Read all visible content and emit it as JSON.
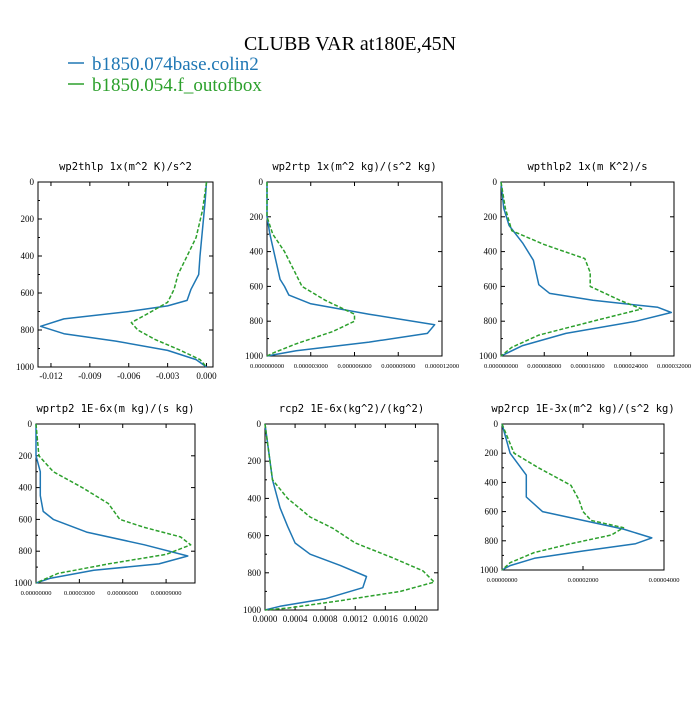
{
  "page": {
    "title": "CLUBB VAR at180E,45N",
    "legend": [
      {
        "label": "b1850.074base.colin2",
        "color": "#1f77b4"
      },
      {
        "label": "b1850.054.f_outofbox",
        "color": "#2ca02c"
      }
    ]
  },
  "chart_data": [
    {
      "type": "line",
      "title": "wp2thlp  1x(m^2 K)/s^2",
      "xlim": [
        -0.013,
        0.0005
      ],
      "ylim": [
        1000,
        0
      ],
      "xticks": [
        "-0.012",
        "-0.009",
        "-0.006",
        "-0.003",
        "0.000"
      ],
      "xtick_values": [
        -0.012,
        -0.009,
        -0.006,
        -0.003,
        0.0
      ],
      "yticks": [
        "0",
        "200",
        "400",
        "600",
        "800",
        "1000"
      ],
      "ytick_values": [
        0,
        200,
        400,
        600,
        800,
        1000
      ],
      "series": [
        {
          "color": "#1f77b4",
          "dashed": false,
          "points": [
            [
              0,
              0
            ],
            [
              -0.0001,
              100
            ],
            [
              -0.0003,
              250
            ],
            [
              -0.0005,
              400
            ],
            [
              -0.0006,
              500
            ],
            [
              -0.0012,
              580
            ],
            [
              -0.0015,
              640
            ],
            [
              -0.003,
              670
            ],
            [
              -0.006,
              700
            ],
            [
              -0.011,
              740
            ],
            [
              -0.0128,
              780
            ],
            [
              -0.011,
              820
            ],
            [
              -0.007,
              860
            ],
            [
              -0.003,
              910
            ],
            [
              -0.0008,
              960
            ],
            [
              0,
              1000
            ]
          ]
        },
        {
          "color": "#2ca02c",
          "dashed": true,
          "points": [
            [
              0,
              0
            ],
            [
              -0.0003,
              150
            ],
            [
              -0.0008,
              300
            ],
            [
              -0.0015,
              400
            ],
            [
              -0.0022,
              500
            ],
            [
              -0.0025,
              580
            ],
            [
              -0.003,
              650
            ],
            [
              -0.0045,
              710
            ],
            [
              -0.0058,
              760
            ],
            [
              -0.0053,
              800
            ],
            [
              -0.004,
              850
            ],
            [
              -0.002,
              910
            ],
            [
              -0.0005,
              960
            ],
            [
              0,
              1000
            ]
          ]
        }
      ]
    },
    {
      "type": "line",
      "title": "wp2rtp  1x(m^2 kg)/(s^2 kg)",
      "xlim": [
        0,
        1.2e-05
      ],
      "ylim": [
        1000,
        0
      ],
      "xticks": [
        "0.000000000",
        "0.000003000",
        "0.000006000",
        "0.000009000",
        "0.000012000"
      ],
      "xtick_values": [
        0,
        3e-06,
        6e-06,
        9e-06,
        1.2e-05
      ],
      "yticks": [
        "0",
        "200",
        "400",
        "600",
        "800",
        "1000"
      ],
      "ytick_values": [
        0,
        200,
        400,
        600,
        800,
        1000
      ],
      "series": [
        {
          "color": "#1f77b4",
          "dashed": false,
          "points": [
            [
              0,
              0
            ],
            [
              0,
              200
            ],
            [
              2e-07,
              300
            ],
            [
              6e-07,
              450
            ],
            [
              9e-07,
              560
            ],
            [
              1.2e-06,
              600
            ],
            [
              1.5e-06,
              650
            ],
            [
              3e-06,
              700
            ],
            [
              7e-06,
              760
            ],
            [
              1.15e-05,
              820
            ],
            [
              1.1e-05,
              870
            ],
            [
              7e-06,
              920
            ],
            [
              2e-06,
              970
            ],
            [
              0,
              1000
            ]
          ]
        },
        {
          "color": "#2ca02c",
          "dashed": true,
          "points": [
            [
              0,
              0
            ],
            [
              0,
              200
            ],
            [
              4e-07,
              300
            ],
            [
              1.2e-06,
              400
            ],
            [
              1.8e-06,
              500
            ],
            [
              2.4e-06,
              600
            ],
            [
              4e-06,
              680
            ],
            [
              6e-06,
              760
            ],
            [
              6e-06,
              800
            ],
            [
              4.5e-06,
              860
            ],
            [
              2e-06,
              930
            ],
            [
              5e-07,
              980
            ],
            [
              0,
              1000
            ]
          ]
        }
      ]
    },
    {
      "type": "line",
      "title": "wpthlp2  1x(m K^2)/s",
      "xlim": [
        0,
        3.2e-05
      ],
      "ylim": [
        1000,
        0
      ],
      "xticks": [
        "0.000000000",
        "0.000008000",
        "0.000016000",
        "0.000024000",
        "0.000032000"
      ],
      "xtick_values": [
        0,
        8e-06,
        1.6e-05,
        2.4e-05,
        3.2e-05
      ],
      "yticks": [
        "0",
        "200",
        "400",
        "600",
        "800",
        "1000"
      ],
      "ytick_values": [
        0,
        200,
        400,
        600,
        800,
        1000
      ],
      "series": [
        {
          "color": "#1f77b4",
          "dashed": false,
          "points": [
            [
              0,
              0
            ],
            [
              5e-07,
              150
            ],
            [
              1.5e-06,
              250
            ],
            [
              4e-06,
              350
            ],
            [
              6e-06,
              450
            ],
            [
              6.5e-06,
              520
            ],
            [
              7e-06,
              590
            ],
            [
              9e-06,
              640
            ],
            [
              1.7e-05,
              680
            ],
            [
              2.9e-05,
              720
            ],
            [
              3.15e-05,
              750
            ],
            [
              2.5e-05,
              800
            ],
            [
              1.2e-05,
              870
            ],
            [
              4e-06,
              940
            ],
            [
              0,
              1000
            ]
          ]
        },
        {
          "color": "#2ca02c",
          "dashed": true,
          "points": [
            [
              0,
              0
            ],
            [
              8e-07,
              150
            ],
            [
              2e-06,
              280
            ],
            [
              8e-06,
              360
            ],
            [
              1.55e-05,
              440
            ],
            [
              1.65e-05,
              520
            ],
            [
              1.65e-05,
              600
            ],
            [
              2.2e-05,
              680
            ],
            [
              2.6e-05,
              730
            ],
            [
              1.7e-05,
              800
            ],
            [
              7e-06,
              880
            ],
            [
              2e-06,
              950
            ],
            [
              0,
              1000
            ]
          ]
        }
      ]
    },
    {
      "type": "line",
      "title": "wprtp2  1E-6x(m kg)/(s kg)",
      "xlim": [
        0,
        0.00011
      ],
      "ylim": [
        1000,
        0
      ],
      "xticks": [
        "0.00000000",
        "0.00003000",
        "0.00006000",
        "0.00009000"
      ],
      "xtick_values": [
        0,
        3e-05,
        6e-05,
        9e-05
      ],
      "yticks": [
        "0",
        "200",
        "400",
        "600",
        "800",
        "1000"
      ],
      "ytick_values": [
        0,
        200,
        400,
        600,
        800,
        1000
      ],
      "series": [
        {
          "color": "#1f77b4",
          "dashed": false,
          "points": [
            [
              0,
              0
            ],
            [
              0,
              200
            ],
            [
              3e-06,
              300
            ],
            [
              3e-06,
              450
            ],
            [
              5e-06,
              550
            ],
            [
              1.2e-05,
              600
            ],
            [
              3.5e-05,
              680
            ],
            [
              7.5e-05,
              760
            ],
            [
              0.000105,
              830
            ],
            [
              8.5e-05,
              880
            ],
            [
              4e-05,
              920
            ],
            [
              1e-05,
              970
            ],
            [
              0,
              1000
            ]
          ]
        },
        {
          "color": "#2ca02c",
          "dashed": true,
          "points": [
            [
              0,
              0
            ],
            [
              2e-06,
              200
            ],
            [
              1.2e-05,
              300
            ],
            [
              3.2e-05,
              400
            ],
            [
              5e-05,
              500
            ],
            [
              5.8e-05,
              600
            ],
            [
              7.5e-05,
              650
            ],
            [
              0.0001,
              710
            ],
            [
              0.000107,
              760
            ],
            [
              9e-05,
              820
            ],
            [
              5e-05,
              880
            ],
            [
              1.5e-05,
              940
            ],
            [
              0,
              1000
            ]
          ]
        }
      ]
    },
    {
      "type": "line",
      "title": "rcp2  1E-6x(kg^2)/(kg^2)",
      "xlim": [
        0,
        0.0023
      ],
      "ylim": [
        1000,
        0
      ],
      "xticks": [
        "0.0000",
        "0.0004",
        "0.0008",
        "0.0012",
        "0.0016",
        "0.0020"
      ],
      "xtick_values": [
        0,
        0.0004,
        0.0008,
        0.0012,
        0.0016,
        0.002
      ],
      "yticks": [
        "0",
        "200",
        "400",
        "600",
        "800",
        "1000"
      ],
      "ytick_values": [
        0,
        200,
        400,
        600,
        800,
        1000
      ],
      "series": [
        {
          "color": "#1f77b4",
          "dashed": false,
          "points": [
            [
              0,
              0
            ],
            [
              0.0001,
              300
            ],
            [
              0.0002,
              450
            ],
            [
              0.0003,
              550
            ],
            [
              0.0004,
              640
            ],
            [
              0.0006,
              700
            ],
            [
              0.001,
              760
            ],
            [
              0.00135,
              820
            ],
            [
              0.0013,
              880
            ],
            [
              0.0008,
              940
            ],
            [
              0.0002,
              980
            ],
            [
              0,
              1000
            ]
          ]
        },
        {
          "color": "#2ca02c",
          "dashed": true,
          "points": [
            [
              0,
              0
            ],
            [
              0.0001,
              300
            ],
            [
              0.0003,
              400
            ],
            [
              0.0006,
              500
            ],
            [
              0.0009,
              560
            ],
            [
              0.0012,
              640
            ],
            [
              0.0017,
              720
            ],
            [
              0.0021,
              790
            ],
            [
              0.00225,
              850
            ],
            [
              0.0018,
              900
            ],
            [
              0.001,
              950
            ],
            [
              0.0003,
              990
            ],
            [
              0,
              1000
            ]
          ]
        }
      ]
    },
    {
      "type": "line",
      "title": "wp2rcp  1E-3x(m^2 kg)/(s^2 kg)",
      "xlim": [
        0,
        4e-05
      ],
      "ylim": [
        1000,
        0
      ],
      "xticks": [
        "0.00000000",
        "0.00002000",
        "0.00004000"
      ],
      "xtick_values": [
        0,
        2e-05,
        4e-05
      ],
      "yticks": [
        "0",
        "200",
        "400",
        "600",
        "800",
        "1000"
      ],
      "ytick_values": [
        0,
        200,
        400,
        600,
        800,
        1000
      ],
      "series": [
        {
          "color": "#1f77b4",
          "dashed": false,
          "points": [
            [
              0,
              0
            ],
            [
              2e-06,
              200
            ],
            [
              6e-06,
              350
            ],
            [
              6e-06,
              500
            ],
            [
              1e-05,
              600
            ],
            [
              2e-05,
              660
            ],
            [
              3e-05,
              720
            ],
            [
              3.7e-05,
              780
            ],
            [
              3.3e-05,
              820
            ],
            [
              2e-05,
              870
            ],
            [
              8e-06,
              920
            ],
            [
              2e-06,
              970
            ],
            [
              0,
              1000
            ]
          ]
        },
        {
          "color": "#2ca02c",
          "dashed": true,
          "points": [
            [
              0,
              0
            ],
            [
              3e-06,
              200
            ],
            [
              9e-06,
              300
            ],
            [
              1.7e-05,
              420
            ],
            [
              1.9e-05,
              520
            ],
            [
              2e-05,
              600
            ],
            [
              2.2e-05,
              660
            ],
            [
              3e-05,
              710
            ],
            [
              2.7e-05,
              760
            ],
            [
              1.7e-05,
              820
            ],
            [
              8e-06,
              880
            ],
            [
              2e-06,
              950
            ],
            [
              0,
              1000
            ]
          ]
        }
      ]
    }
  ]
}
